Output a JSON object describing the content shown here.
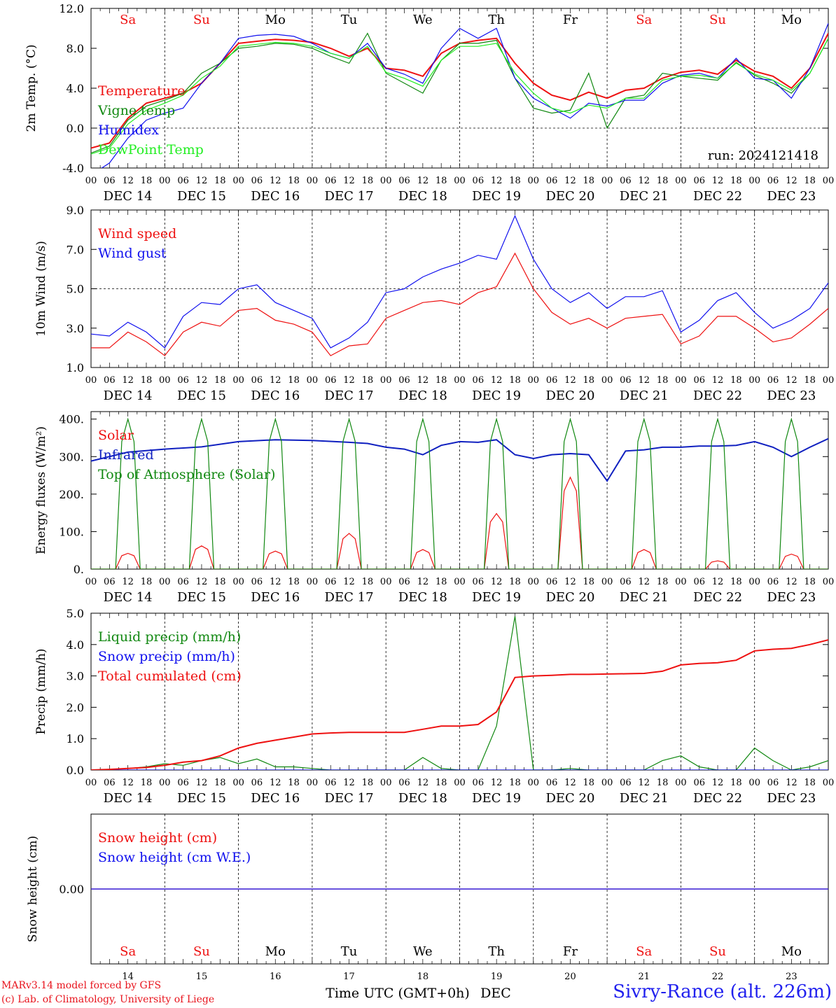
{
  "colors": {
    "red": "#ee1111",
    "green": "#118811",
    "blue": "#1010ee",
    "lightgreen": "#22ee22",
    "dark_blue": "#1020c0"
  },
  "x_axis": {
    "hour_ticks": [
      "00",
      "06",
      "12",
      "18"
    ],
    "final_hour": "00",
    "date_labels": [
      "DEC 14",
      "DEC 15",
      "DEC 16",
      "DEC 17",
      "DEC 18",
      "DEC 19",
      "DEC 20",
      "DEC 21",
      "DEC 22",
      "DEC 23"
    ],
    "weekdays": [
      "Sa",
      "Su",
      "Mo",
      "Tu",
      "We",
      "Th",
      "Fr",
      "Sa",
      "Su",
      "Mo"
    ],
    "weekday_weekend": [
      true,
      true,
      false,
      false,
      false,
      false,
      false,
      true,
      true,
      false
    ],
    "day_numbers": [
      "14",
      "15",
      "16",
      "17",
      "18",
      "19",
      "20",
      "21",
      "22",
      "23"
    ],
    "title": "Time UTC (GMT+0h)",
    "month": "DEC"
  },
  "footer": {
    "credit1": "MARv3.14 model forced by GFS",
    "credit2": "(c) Lab. of Climatology, University of Liege",
    "station": "Sivry-Rance (alt. 226m)"
  },
  "chart_data": [
    {
      "type": "line",
      "ylabel": "2m Temp. (°C)",
      "ylim": [
        -4.0,
        12.0
      ],
      "yticks": [
        "-4.0",
        "0.0",
        "4.0",
        "8.0",
        "12.0"
      ],
      "zero_line": true,
      "run_label": "run: 2024121418",
      "x_hours": [
        0,
        6,
        12,
        18,
        24,
        30,
        36,
        42,
        48,
        54,
        60,
        66,
        72,
        78,
        84,
        90,
        96,
        102,
        108,
        114,
        120,
        126,
        132,
        138,
        144,
        150,
        156,
        162,
        168,
        174,
        180,
        186,
        192,
        198,
        204,
        210,
        216,
        222,
        228,
        234,
        240
      ],
      "series": [
        {
          "name": "Temperature",
          "color_key": "red",
          "values": [
            -2.0,
            -1.5,
            1.0,
            2.5,
            3.0,
            3.5,
            4.5,
            6.5,
            8.5,
            8.7,
            8.9,
            8.8,
            8.6,
            8.0,
            7.2,
            8.0,
            6.0,
            5.8,
            5.2,
            7.5,
            8.5,
            8.8,
            9.0,
            6.5,
            4.5,
            3.3,
            2.8,
            3.6,
            3.0,
            3.8,
            4.0,
            5.0,
            5.6,
            5.8,
            5.4,
            6.8,
            5.7,
            5.2,
            4.0,
            6.0,
            9.5
          ]
        },
        {
          "name": "Vigne temp",
          "color_key": "green",
          "values": [
            -2.5,
            -1.8,
            0.8,
            2.2,
            2.8,
            3.5,
            5.5,
            6.5,
            8.0,
            8.2,
            8.5,
            8.4,
            8.0,
            7.2,
            6.5,
            9.5,
            5.5,
            4.5,
            3.5,
            6.8,
            8.5,
            8.5,
            8.8,
            5.0,
            2.0,
            1.5,
            1.8,
            5.5,
            0.0,
            3.0,
            3.3,
            5.5,
            5.2,
            5.0,
            4.8,
            6.6,
            5.3,
            4.5,
            3.5,
            5.5,
            9.0
          ]
        },
        {
          "name": "Humidex",
          "color_key": "blue",
          "values": [
            -4.7,
            -3.5,
            -1.0,
            0.8,
            1.5,
            2.0,
            4.5,
            6.5,
            9.0,
            9.3,
            9.4,
            9.2,
            8.5,
            7.5,
            7.0,
            8.5,
            6.0,
            5.4,
            4.5,
            8.0,
            10.0,
            9.0,
            10.0,
            5.0,
            3.0,
            2.0,
            1.0,
            2.5,
            2.2,
            2.8,
            2.8,
            4.5,
            5.3,
            5.5,
            5.0,
            7.0,
            5.0,
            4.8,
            3.0,
            6.0,
            10.5
          ]
        },
        {
          "name": "DewPoint Temp",
          "color_key": "lightgreen",
          "values": [
            -2.6,
            -2.0,
            0.4,
            1.8,
            2.5,
            3.3,
            5.0,
            6.2,
            8.2,
            8.4,
            8.6,
            8.5,
            8.2,
            7.5,
            7.0,
            8.2,
            5.6,
            5.0,
            4.2,
            6.8,
            8.2,
            8.2,
            8.5,
            5.5,
            3.5,
            2.0,
            1.5,
            2.3,
            2.0,
            3.0,
            3.0,
            4.8,
            5.2,
            5.3,
            5.0,
            6.5,
            5.4,
            4.8,
            3.8,
            5.5,
            9.0
          ]
        }
      ]
    },
    {
      "type": "line",
      "ylabel": "10m Wind (m/s)",
      "ylim": [
        1.0,
        9.0
      ],
      "yticks": [
        "1.0",
        "3.0",
        "5.0",
        "7.0",
        "9.0"
      ],
      "ref_line": 5.0,
      "x_hours": [
        0,
        6,
        12,
        18,
        24,
        30,
        36,
        42,
        48,
        54,
        60,
        66,
        72,
        78,
        84,
        90,
        96,
        102,
        108,
        114,
        120,
        126,
        132,
        138,
        144,
        150,
        156,
        162,
        168,
        174,
        180,
        186,
        192,
        198,
        204,
        210,
        216,
        222,
        228,
        234,
        240
      ],
      "series": [
        {
          "name": "Wind speed",
          "color_key": "red",
          "values": [
            2.0,
            2.0,
            2.8,
            2.3,
            1.6,
            2.8,
            3.3,
            3.1,
            3.9,
            4.0,
            3.4,
            3.2,
            2.8,
            1.6,
            2.1,
            2.2,
            3.5,
            3.9,
            4.3,
            4.4,
            4.2,
            4.8,
            5.1,
            6.8,
            5.0,
            3.8,
            3.2,
            3.5,
            3.0,
            3.5,
            3.6,
            3.7,
            2.2,
            2.6,
            3.6,
            3.6,
            3.0,
            2.3,
            2.5,
            3.2,
            4.0
          ]
        },
        {
          "name": "Wind gust",
          "color_key": "blue",
          "values": [
            2.7,
            2.6,
            3.3,
            2.8,
            2.0,
            3.6,
            4.3,
            4.2,
            5.0,
            5.2,
            4.3,
            3.9,
            3.5,
            2.0,
            2.5,
            3.3,
            4.8,
            5.0,
            5.6,
            6.0,
            6.3,
            6.7,
            6.5,
            8.7,
            6.5,
            5.0,
            4.3,
            4.8,
            4.0,
            4.6,
            4.6,
            4.9,
            2.8,
            3.4,
            4.4,
            4.8,
            3.8,
            3.0,
            3.4,
            4.0,
            5.3
          ]
        }
      ]
    },
    {
      "type": "line",
      "ylabel": "Energy fluxes (W/m²)",
      "ylim": [
        0,
        420
      ],
      "yticks": [
        "0.",
        "100.",
        "200.",
        "300.",
        "400."
      ],
      "series": [
        {
          "name": "Solar",
          "color_key": "red",
          "peaks": [
            42,
            62,
            48,
            95,
            52,
            148,
            245,
            52,
            22,
            40
          ]
        },
        {
          "name": "Infrared",
          "color_key": "dark_blue",
          "x_hours": [
            0,
            12,
            24,
            36,
            48,
            60,
            72,
            84,
            90,
            96,
            102,
            108,
            114,
            120,
            126,
            132,
            138,
            144,
            150,
            156,
            162,
            168,
            174,
            180,
            186,
            192,
            198,
            204,
            210,
            216,
            222,
            228,
            234,
            240
          ],
          "values": [
            288,
            312,
            320,
            326,
            340,
            345,
            343,
            338,
            335,
            325,
            320,
            305,
            330,
            340,
            338,
            345,
            305,
            295,
            305,
            308,
            305,
            235,
            315,
            318,
            325,
            325,
            328,
            328,
            330,
            340,
            325,
            300,
            325,
            348
          ]
        },
        {
          "name": "Top of Atmosphere (Solar)",
          "color_key": "green",
          "peaks": [
            400,
            400,
            400,
            400,
            400,
            400,
            400,
            400,
            400,
            400
          ]
        }
      ]
    },
    {
      "type": "line",
      "ylabel": "Precip (mm/h)",
      "ylim": [
        0.0,
        5.0
      ],
      "yticks": [
        "0.0",
        "1.0",
        "2.0",
        "3.0",
        "4.0",
        "5.0"
      ],
      "x_hours": [
        0,
        6,
        12,
        18,
        24,
        30,
        36,
        42,
        48,
        54,
        60,
        66,
        72,
        78,
        84,
        90,
        96,
        102,
        108,
        114,
        120,
        126,
        132,
        138,
        144,
        150,
        156,
        162,
        168,
        174,
        180,
        186,
        192,
        198,
        204,
        210,
        216,
        222,
        228,
        234,
        240
      ],
      "series": [
        {
          "name": "Liquid precip (mm/h)",
          "color_key": "green",
          "values": [
            0.0,
            0.02,
            0.05,
            0.1,
            0.2,
            0.15,
            0.3,
            0.4,
            0.2,
            0.35,
            0.1,
            0.1,
            0.05,
            0.0,
            0.0,
            0.0,
            0.0,
            0.0,
            0.4,
            0.05,
            0.0,
            0.0,
            1.4,
            4.9,
            0.0,
            0.0,
            0.05,
            0.0,
            0.0,
            0.0,
            0.0,
            0.3,
            0.45,
            0.1,
            0.0,
            0.0,
            0.7,
            0.3,
            0.0,
            0.1,
            0.3
          ]
        },
        {
          "name": "Snow precip (mm/h)",
          "color_key": "blue",
          "values": [
            0,
            0,
            0,
            0,
            0,
            0,
            0,
            0,
            0,
            0,
            0,
            0,
            0,
            0,
            0,
            0,
            0,
            0,
            0,
            0,
            0,
            0,
            0,
            0,
            0,
            0,
            0,
            0,
            0,
            0,
            0,
            0,
            0,
            0,
            0,
            0,
            0,
            0,
            0,
            0,
            0
          ]
        },
        {
          "name": "Total cumulated (cm)",
          "color_key": "red",
          "values": [
            0.0,
            0.02,
            0.05,
            0.08,
            0.15,
            0.25,
            0.3,
            0.45,
            0.7,
            0.85,
            0.95,
            1.05,
            1.15,
            1.18,
            1.2,
            1.2,
            1.2,
            1.2,
            1.3,
            1.4,
            1.4,
            1.45,
            1.85,
            2.95,
            3.0,
            3.02,
            3.05,
            3.05,
            3.06,
            3.07,
            3.08,
            3.15,
            3.35,
            3.4,
            3.42,
            3.5,
            3.8,
            3.85,
            3.88,
            4.0,
            4.15
          ]
        }
      ]
    },
    {
      "type": "line",
      "ylabel": "Snow height (cm)",
      "ylim": [
        -1,
        1
      ],
      "yticks": [
        "0.00"
      ],
      "series": [
        {
          "name": "Snow height (cm)",
          "color_key": "red",
          "values": [
            0,
            0
          ]
        },
        {
          "name": "Snow height (cm W.E.)",
          "color_key": "blue",
          "values": [
            0,
            0
          ]
        }
      ]
    }
  ]
}
